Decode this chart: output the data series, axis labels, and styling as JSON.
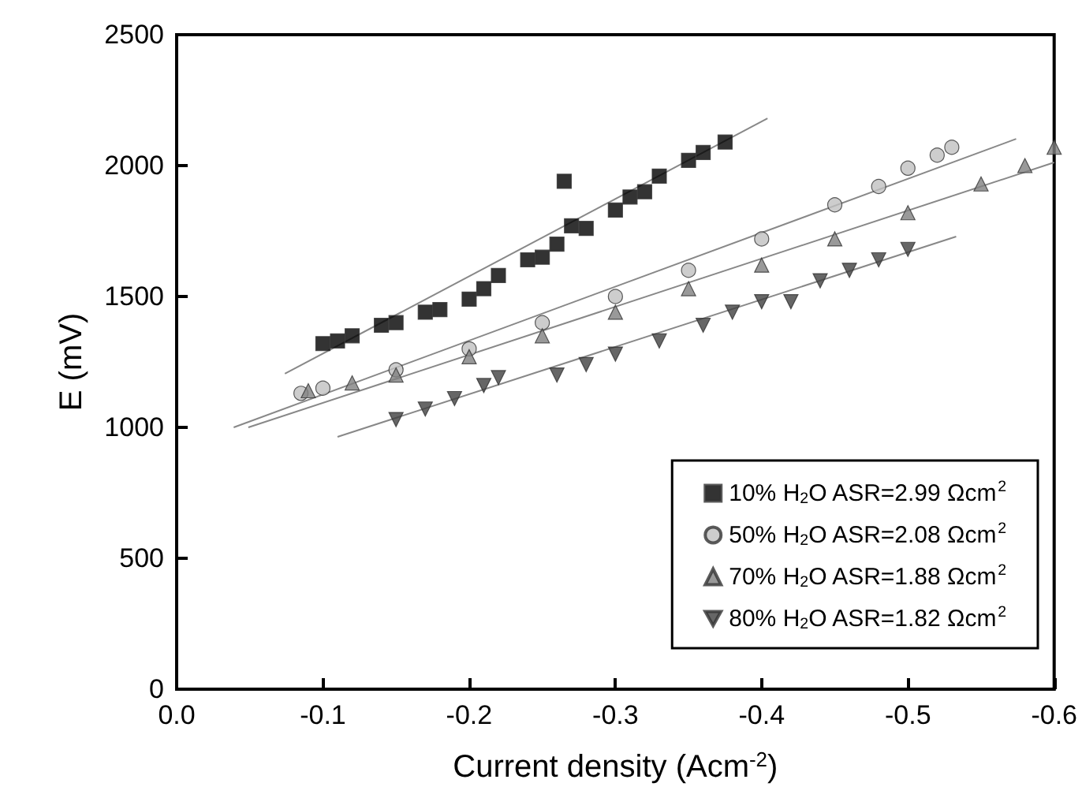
{
  "chart_data": {
    "type": "scatter",
    "xlabel": "Current density (Acm$^{-2}$)",
    "ylabel": "E (mV)",
    "xlim": [
      0,
      -0.6
    ],
    "xticks": [
      {
        "value": 0,
        "label": "0.0"
      },
      -0.1,
      -0.2,
      -0.3,
      -0.4,
      -0.5,
      -0.6
    ],
    "ylim": [
      0,
      2500
    ],
    "yticks": [
      0,
      500,
      1000,
      1500,
      2000,
      2500
    ],
    "grid": false,
    "legend": "bottom right",
    "series": [
      {
        "name": "10% H$_{2}$O ASR=2.99 Ωcm$^{2}$",
        "color": "#000000",
        "marker": "square",
        "x": [
          -0.1,
          -0.11,
          -0.12,
          -0.14,
          -0.15,
          -0.17,
          -0.18,
          -0.2,
          -0.21,
          -0.22,
          -0.24,
          -0.25,
          -0.26,
          -0.265,
          -0.27,
          -0.28,
          -0.3,
          -0.31,
          -0.32,
          -0.33,
          -0.35,
          -0.36,
          -0.375
        ],
        "values": [
          1320,
          1330,
          1350,
          1390,
          1400,
          1440,
          1450,
          1490,
          1530,
          1580,
          1640,
          1650,
          1700,
          1940,
          1770,
          1760,
          1830,
          1880,
          1900,
          1960,
          2020,
          2050,
          2090
        ]
      },
      {
        "name": "50% H$_{2}$O ASR=2.08 Ωcm$^{2}$",
        "color": "#c0c0c0",
        "marker": "circle",
        "x": [
          -0.085,
          -0.1,
          -0.15,
          -0.2,
          -0.25,
          -0.3,
          -0.35,
          -0.4,
          -0.45,
          -0.48,
          -0.5,
          -0.52,
          -0.53
        ],
        "values": [
          1130,
          1150,
          1220,
          1300,
          1400,
          1500,
          1600,
          1720,
          1850,
          1920,
          1990,
          2040,
          2070
        ]
      },
      {
        "name": "70% H$_{2}$O ASR=1.88 Ωcm$^{2}$",
        "color": "#808080",
        "marker": "triangle",
        "x": [
          -0.09,
          -0.12,
          -0.15,
          -0.2,
          -0.25,
          -0.3,
          -0.35,
          -0.4,
          -0.45,
          -0.5,
          -0.55,
          -0.58,
          -0.6
        ],
        "values": [
          1140,
          1170,
          1200,
          1270,
          1350,
          1440,
          1530,
          1620,
          1720,
          1820,
          1930,
          2000,
          2070
        ]
      },
      {
        "name": "80% H$_{2}$O ASR=1.82 Ωcm$^{2}$",
        "color": "#404040",
        "marker": "triangle-down",
        "x": [
          -0.15,
          -0.17,
          -0.19,
          -0.21,
          -0.22,
          -0.26,
          -0.28,
          -0.3,
          -0.33,
          -0.36,
          -0.38,
          -0.4,
          -0.42,
          -0.44,
          -0.46,
          -0.48,
          -0.5
        ],
        "values": [
          1030,
          1070,
          1110,
          1160,
          1190,
          1200,
          1240,
          1280,
          1330,
          1390,
          1440,
          1480,
          1480,
          1560,
          1600,
          1640,
          1680
        ]
      },
      {
        "type": "line",
        "color": "#888888",
        "marker": "none",
        "x": [
          -0.074,
          -0.404
        ],
        "values": [
          1205,
          2180
        ]
      },
      {
        "type": "line",
        "color": "#888888",
        "marker": "none",
        "x": [
          -0.039,
          -0.574
        ],
        "values": [
          1000,
          2102
        ]
      },
      {
        "type": "line",
        "color": "#888888",
        "marker": "none",
        "x": [
          -0.049,
          -0.6
        ],
        "values": [
          1000,
          2012
        ]
      },
      {
        "type": "line",
        "color": "#888888",
        "marker": "none",
        "x": [
          -0.11,
          -0.533
        ],
        "values": [
          964,
          1729
        ]
      }
    ]
  }
}
